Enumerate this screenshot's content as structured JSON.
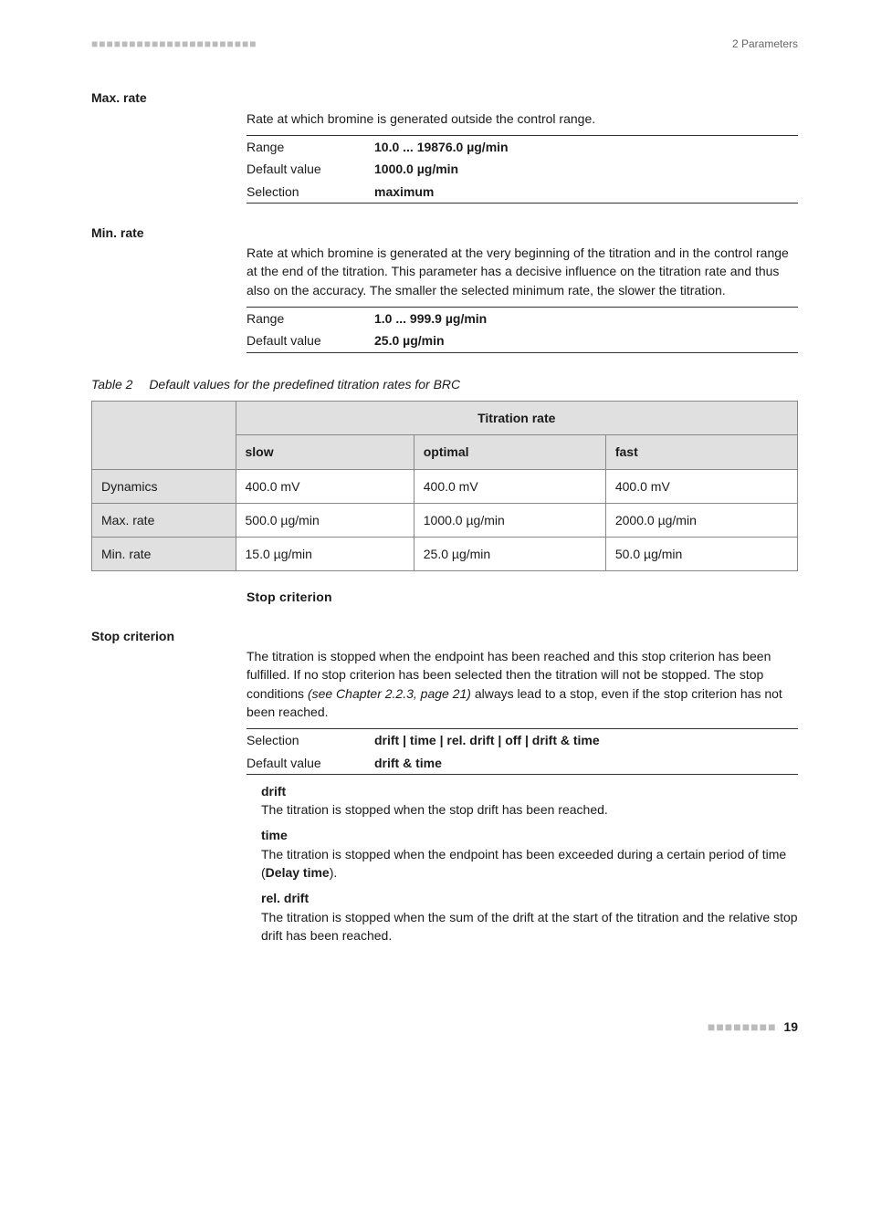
{
  "header": {
    "dots": "■■■■■■■■■■■■■■■■■■■■■■",
    "right": "2 Parameters"
  },
  "maxrate": {
    "title": "Max. rate",
    "desc": "Rate at which bromine is generated outside the control range.",
    "rows": [
      {
        "label": "Range",
        "value": "10.0 ... 19876.0 µg/min"
      },
      {
        "label": "Default value",
        "value": "1000.0 µg/min"
      },
      {
        "label": "Selection",
        "value": "maximum"
      }
    ]
  },
  "minrate": {
    "title": "Min. rate",
    "desc": "Rate at which bromine is generated at the very beginning of the titration and in the control range at the end of the titration. This parameter has a decisive influence on the titration rate and thus also on the accuracy. The smaller the selected minimum rate, the slower the titration.",
    "rows": [
      {
        "label": "Range",
        "value": "1.0 ... 999.9 µg/min"
      },
      {
        "label": "Default value",
        "value": "25.0 µg/min"
      }
    ]
  },
  "table2": {
    "caption_num": "Table 2",
    "caption_text": "Default values for the predefined titration rates for BRC",
    "span_header": "Titration rate",
    "col_headers": [
      "slow",
      "optimal",
      "fast"
    ],
    "rows": [
      {
        "name": "Dynamics",
        "cells": [
          "400.0 mV",
          "400.0 mV",
          "400.0 mV"
        ]
      },
      {
        "name": "Max. rate",
        "cells": [
          "500.0 µg/min",
          "1000.0 µg/min",
          "2000.0 µg/min"
        ]
      },
      {
        "name": "Min. rate",
        "cells": [
          "15.0 µg/min",
          "25.0 µg/min",
          "50.0 µg/min"
        ]
      }
    ]
  },
  "stopcrit": {
    "head": "Stop criterion",
    "title": "Stop criterion",
    "para_a": "The titration is stopped when the endpoint has been reached and this stop criterion has been fulfilled. If no stop criterion has been selected then the titration will not be stopped. The stop conditions ",
    "para_ref": "(see Chapter 2.2.3, page 21)",
    "para_b": " always lead to a stop, even if the stop criterion has not been reached.",
    "rows": [
      {
        "label": "Selection",
        "value": "drift | time | rel. drift | off | drift & time"
      },
      {
        "label": "Default value",
        "value": "drift & time"
      }
    ],
    "defs": [
      {
        "term": "drift",
        "text": "The titration is stopped when the stop drift has been reached."
      },
      {
        "term": "time",
        "text_a": "The titration is stopped when the endpoint has been exceeded during a certain period of time (",
        "bold": "Delay time",
        "text_b": ")."
      },
      {
        "term": "rel. drift",
        "text": "The titration is stopped when the sum of the drift at the start of the titration and the relative stop drift has been reached."
      }
    ]
  },
  "footer": {
    "dots": "■■■■■■■■",
    "page": "19"
  }
}
